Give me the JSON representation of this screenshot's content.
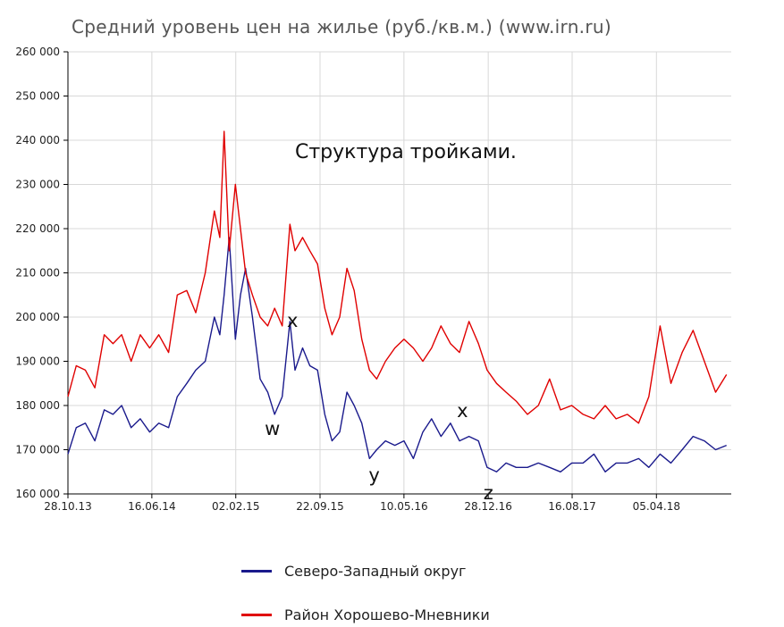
{
  "chart_data": {
    "type": "line",
    "title": "Средний уровень цен на жилье (руб./кв.м.) (www.irn.ru)",
    "annotation": "Структура тройками.",
    "wave_labels": [
      {
        "text": "w",
        "x": "2015-05-10",
        "y": 174500
      },
      {
        "text": "x",
        "x": "2015-07-10",
        "y": 199000
      },
      {
        "text": "y",
        "x": "2016-02-20",
        "y": 164000
      },
      {
        "text": "x",
        "x": "2016-10-20",
        "y": 178500
      },
      {
        "text": "z",
        "x": "2017-01-01",
        "y": 160000
      }
    ],
    "ylim": [
      160000,
      260000
    ],
    "y_ticks": [
      "160 000",
      "170 000",
      "180 000",
      "190 000",
      "200 000",
      "210 000",
      "220 000",
      "230 000",
      "240 000",
      "250 000",
      "260 000"
    ],
    "x_ticks": [
      "28.10.13",
      "16.06.14",
      "02.02.15",
      "22.09.15",
      "10.05.16",
      "28.12.16",
      "16.08.17",
      "05.04.18"
    ],
    "grid": true,
    "legend_placement": "bottom",
    "series": [
      {
        "name": "Северо-Западный округ",
        "color": "#1a1a8c",
        "x": [
          "2013-10-28",
          "2013-11-20",
          "2013-12-15",
          "2014-01-10",
          "2014-02-05",
          "2014-03-01",
          "2014-03-25",
          "2014-04-20",
          "2014-05-15",
          "2014-06-10",
          "2014-07-05",
          "2014-08-01",
          "2014-08-25",
          "2014-09-20",
          "2014-10-15",
          "2014-11-10",
          "2014-12-05",
          "2014-12-20",
          "2015-01-01",
          "2015-01-15",
          "2015-02-01",
          "2015-02-15",
          "2015-03-01",
          "2015-03-20",
          "2015-04-10",
          "2015-05-01",
          "2015-05-20",
          "2015-06-10",
          "2015-07-01",
          "2015-07-15",
          "2015-08-05",
          "2015-08-25",
          "2015-09-15",
          "2015-10-05",
          "2015-10-25",
          "2015-11-15",
          "2015-12-05",
          "2015-12-25",
          "2016-01-15",
          "2016-02-05",
          "2016-02-25",
          "2016-03-20",
          "2016-04-15",
          "2016-05-10",
          "2016-06-05",
          "2016-07-01",
          "2016-07-25",
          "2016-08-20",
          "2016-09-15",
          "2016-10-10",
          "2016-11-05",
          "2016-12-01",
          "2016-12-25",
          "2017-01-20",
          "2017-02-15",
          "2017-03-15",
          "2017-04-15",
          "2017-05-15",
          "2017-06-15",
          "2017-07-15",
          "2017-08-15",
          "2017-09-15",
          "2017-10-15",
          "2017-11-15",
          "2017-12-15",
          "2018-01-15",
          "2018-02-15",
          "2018-03-15",
          "2018-04-15",
          "2018-05-15",
          "2018-06-15",
          "2018-07-15",
          "2018-08-15",
          "2018-09-15",
          "2018-10-15"
        ],
        "values": [
          169000,
          175000,
          176000,
          172000,
          179000,
          178000,
          180000,
          175000,
          177000,
          174000,
          176000,
          175000,
          182000,
          185000,
          188000,
          190000,
          200000,
          196000,
          205000,
          218000,
          195000,
          205000,
          211000,
          200000,
          186000,
          183000,
          178000,
          182000,
          199000,
          188000,
          193000,
          189000,
          188000,
          178000,
          172000,
          174000,
          183000,
          180000,
          176000,
          168000,
          170000,
          172000,
          171000,
          172000,
          168000,
          174000,
          177000,
          173000,
          176000,
          172000,
          173000,
          172000,
          166000,
          165000,
          167000,
          166000,
          166000,
          167000,
          166000,
          165000,
          167000,
          167000,
          169000,
          165000,
          167000,
          167000,
          168000,
          166000,
          169000,
          167000,
          170000,
          173000,
          172000,
          170000,
          171000
        ]
      },
      {
        "name": "Район Хорошево-Мневники",
        "color": "#e00000",
        "x": [
          "2013-10-28",
          "2013-11-20",
          "2013-12-15",
          "2014-01-10",
          "2014-02-05",
          "2014-03-01",
          "2014-03-25",
          "2014-04-20",
          "2014-05-15",
          "2014-06-10",
          "2014-07-05",
          "2014-08-01",
          "2014-08-25",
          "2014-09-20",
          "2014-10-15",
          "2014-11-10",
          "2014-12-05",
          "2014-12-20",
          "2015-01-01",
          "2015-01-15",
          "2015-02-01",
          "2015-02-15",
          "2015-03-01",
          "2015-03-20",
          "2015-04-10",
          "2015-05-01",
          "2015-05-20",
          "2015-06-10",
          "2015-07-01",
          "2015-07-15",
          "2015-08-05",
          "2015-08-25",
          "2015-09-15",
          "2015-10-05",
          "2015-10-25",
          "2015-11-15",
          "2015-12-05",
          "2015-12-25",
          "2016-01-15",
          "2016-02-05",
          "2016-02-25",
          "2016-03-20",
          "2016-04-15",
          "2016-05-10",
          "2016-06-05",
          "2016-07-01",
          "2016-07-25",
          "2016-08-20",
          "2016-09-15",
          "2016-10-10",
          "2016-11-05",
          "2016-12-01",
          "2016-12-25",
          "2017-01-20",
          "2017-02-15",
          "2017-03-15",
          "2017-04-15",
          "2017-05-15",
          "2017-06-15",
          "2017-07-15",
          "2017-08-15",
          "2017-09-15",
          "2017-10-15",
          "2017-11-15",
          "2017-12-15",
          "2018-01-15",
          "2018-02-15",
          "2018-03-15",
          "2018-04-15",
          "2018-05-15",
          "2018-06-15",
          "2018-07-15",
          "2018-08-15",
          "2018-09-15",
          "2018-10-15"
        ],
        "values": [
          182000,
          189000,
          188000,
          184000,
          196000,
          194000,
          196000,
          190000,
          196000,
          193000,
          196000,
          192000,
          205000,
          206000,
          201000,
          210000,
          224000,
          218000,
          242000,
          215000,
          230000,
          220000,
          210000,
          205000,
          200000,
          198000,
          202000,
          198000,
          221000,
          215000,
          218000,
          215000,
          212000,
          202000,
          196000,
          200000,
          211000,
          206000,
          195000,
          188000,
          186000,
          190000,
          193000,
          195000,
          193000,
          190000,
          193000,
          198000,
          194000,
          192000,
          199000,
          194000,
          188000,
          185000,
          183000,
          181000,
          178000,
          180000,
          186000,
          179000,
          180000,
          178000,
          177000,
          180000,
          177000,
          178000,
          176000,
          182000,
          198000,
          185000,
          192000,
          197000,
          190000,
          183000,
          187000
        ]
      }
    ]
  }
}
